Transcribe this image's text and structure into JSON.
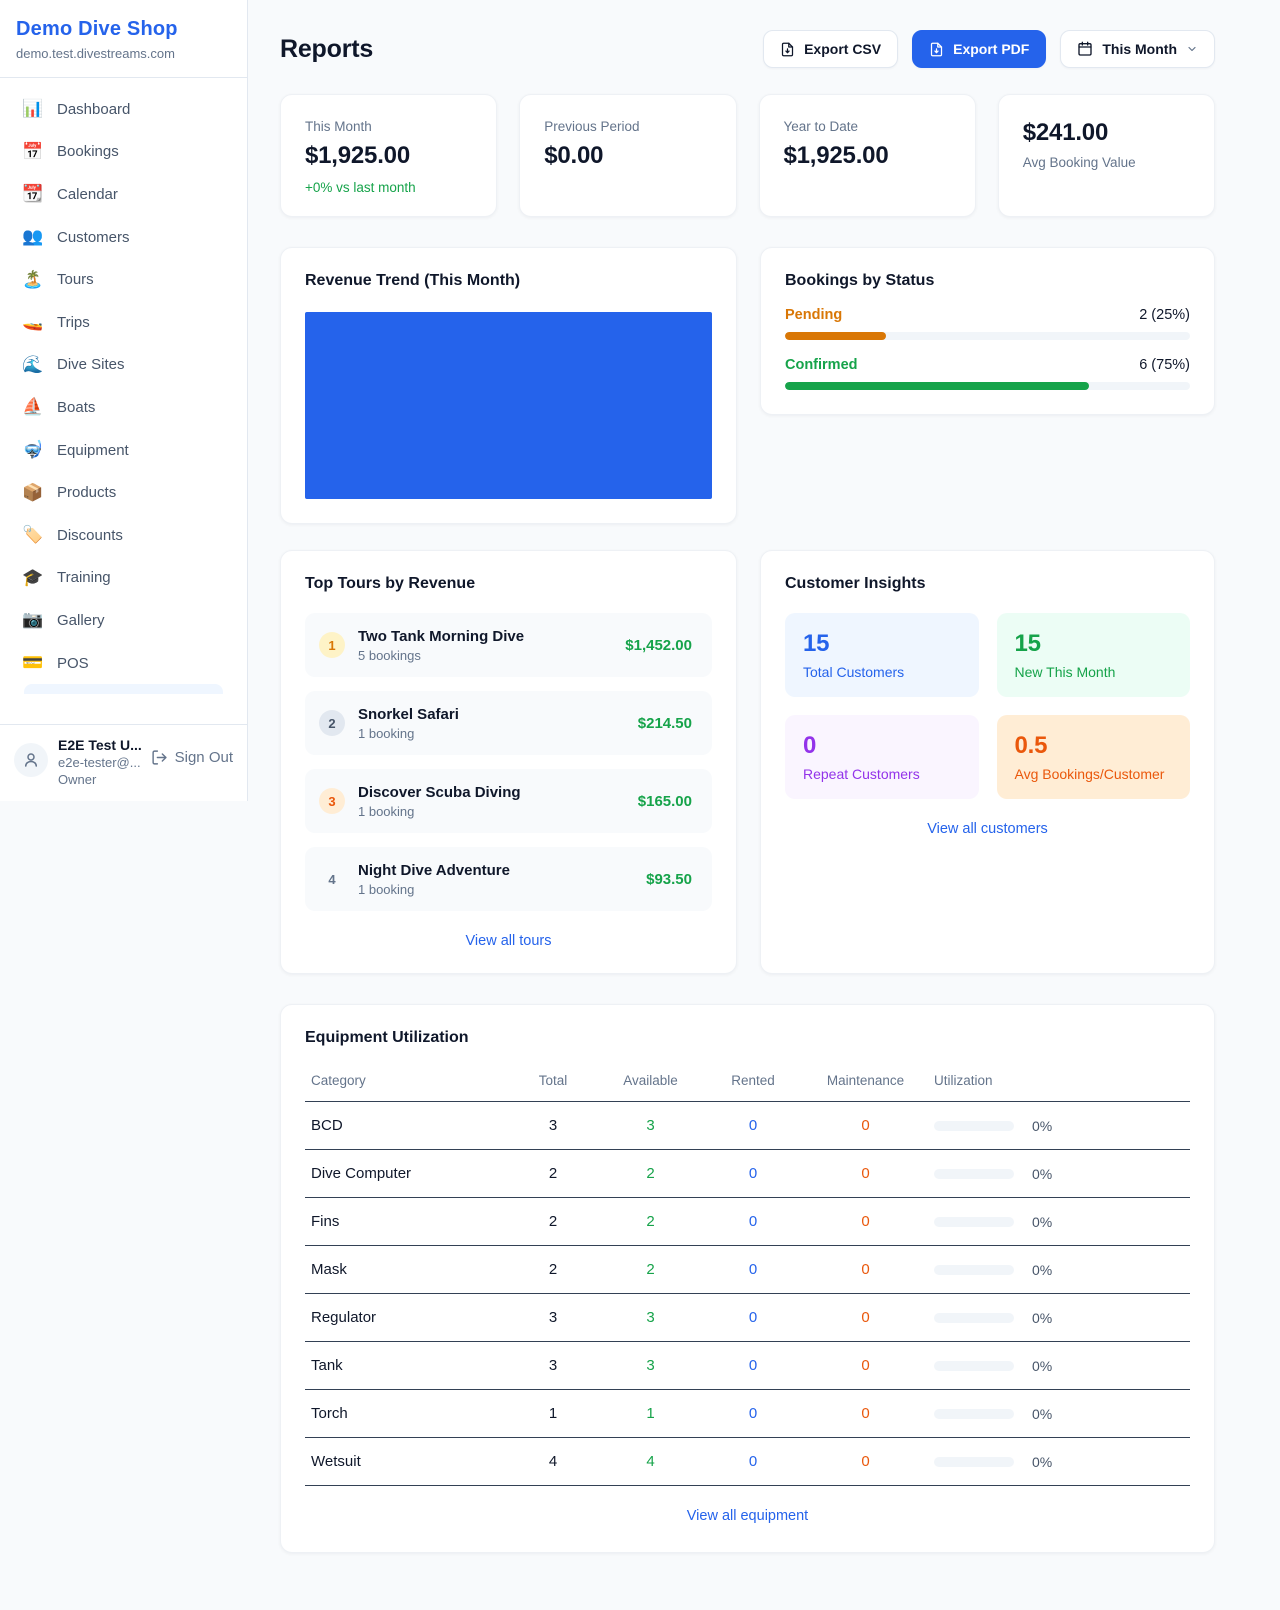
{
  "colors": {
    "primary_blue": "#2563eb",
    "green": "#16a34a",
    "amber": "#d97706",
    "orange": "#ea580c",
    "purple": "#9333ea"
  },
  "sidebar": {
    "shop_name": "Demo Dive Shop",
    "shop_domain": "demo.test.divestreams.com",
    "items": [
      {
        "icon": "📊",
        "icon_name": "bar-chart-icon",
        "label": "Dashboard"
      },
      {
        "icon": "📅",
        "icon_name": "calendar-date-icon",
        "label": "Bookings"
      },
      {
        "icon": "📆",
        "icon_name": "tear-off-calendar-icon",
        "label": "Calendar"
      },
      {
        "icon": "👥",
        "icon_name": "people-icon",
        "label": "Customers"
      },
      {
        "icon": "🏝️",
        "icon_name": "island-icon",
        "label": "Tours"
      },
      {
        "icon": "🚤",
        "icon_name": "speedboat-icon",
        "label": "Trips"
      },
      {
        "icon": "🌊",
        "icon_name": "wave-icon",
        "label": "Dive Sites"
      },
      {
        "icon": "⛵",
        "icon_name": "sailboat-icon",
        "label": "Boats"
      },
      {
        "icon": "🤿",
        "icon_name": "diving-mask-icon",
        "label": "Equipment"
      },
      {
        "icon": "📦",
        "icon_name": "package-icon",
        "label": "Products"
      },
      {
        "icon": "🏷️",
        "icon_name": "tag-icon",
        "label": "Discounts"
      },
      {
        "icon": "🎓",
        "icon_name": "graduation-cap-icon",
        "label": "Training"
      },
      {
        "icon": "📷",
        "icon_name": "camera-icon",
        "label": "Gallery"
      },
      {
        "icon": "💳",
        "icon_name": "credit-card-icon",
        "label": "POS"
      }
    ],
    "user": {
      "name": "E2E Test U...",
      "email": "e2e-tester@...",
      "role": "Owner",
      "sign_out_label": "Sign Out"
    }
  },
  "header": {
    "title": "Reports",
    "export_csv_label": "Export CSV",
    "export_pdf_label": "Export PDF",
    "period_label": "This Month"
  },
  "stats": [
    {
      "label": "This Month",
      "value": "$1,925.00",
      "sub": "+0% vs last month"
    },
    {
      "label": "Previous Period",
      "value": "$0.00"
    },
    {
      "label": "Year to Date",
      "value": "$1,925.00"
    },
    {
      "label": "Avg Booking Value",
      "value": "$241.00"
    }
  ],
  "revenue_trend": {
    "title": "Revenue Trend (This Month)"
  },
  "bookings_by_status": {
    "title": "Bookings by Status",
    "rows": [
      {
        "label": "Pending",
        "count_label": "2 (25%)",
        "pct": 25
      },
      {
        "label": "Confirmed",
        "count_label": "6 (75%)",
        "pct": 75
      }
    ]
  },
  "top_tours": {
    "title": "Top Tours by Revenue",
    "items": [
      {
        "rank": "1",
        "name": "Two Tank Morning Dive",
        "bookings": "5 bookings",
        "amount": "$1,452.00"
      },
      {
        "rank": "2",
        "name": "Snorkel Safari",
        "bookings": "1 booking",
        "amount": "$214.50"
      },
      {
        "rank": "3",
        "name": "Discover Scuba Diving",
        "bookings": "1 booking",
        "amount": "$165.00"
      },
      {
        "rank": "4",
        "name": "Night Dive Adventure",
        "bookings": "1 booking",
        "amount": "$93.50"
      }
    ],
    "view_all": "View all tours"
  },
  "customer_insights": {
    "title": "Customer Insights",
    "tiles": [
      {
        "value": "15",
        "label": "Total Customers"
      },
      {
        "value": "15",
        "label": "New This Month"
      },
      {
        "value": "0",
        "label": "Repeat Customers"
      },
      {
        "value": "0.5",
        "label": "Avg Bookings/Customer"
      }
    ],
    "view_all": "View all customers"
  },
  "equipment": {
    "title": "Equipment Utilization",
    "columns": [
      "Category",
      "Total",
      "Available",
      "Rented",
      "Maintenance",
      "Utilization"
    ],
    "rows": [
      {
        "category": "BCD",
        "total": "3",
        "available": "3",
        "rented": "0",
        "maintenance": "0",
        "utilization_label": "0%",
        "utilization_pct": 0
      },
      {
        "category": "Dive Computer",
        "total": "2",
        "available": "2",
        "rented": "0",
        "maintenance": "0",
        "utilization_label": "0%",
        "utilization_pct": 0
      },
      {
        "category": "Fins",
        "total": "2",
        "available": "2",
        "rented": "0",
        "maintenance": "0",
        "utilization_label": "0%",
        "utilization_pct": 0
      },
      {
        "category": "Mask",
        "total": "2",
        "available": "2",
        "rented": "0",
        "maintenance": "0",
        "utilization_label": "0%",
        "utilization_pct": 0
      },
      {
        "category": "Regulator",
        "total": "3",
        "available": "3",
        "rented": "0",
        "maintenance": "0",
        "utilization_label": "0%",
        "utilization_pct": 0
      },
      {
        "category": "Tank",
        "total": "3",
        "available": "3",
        "rented": "0",
        "maintenance": "0",
        "utilization_label": "0%",
        "utilization_pct": 0
      },
      {
        "category": "Torch",
        "total": "1",
        "available": "1",
        "rented": "0",
        "maintenance": "0",
        "utilization_label": "0%",
        "utilization_pct": 0
      },
      {
        "category": "Wetsuit",
        "total": "4",
        "available": "4",
        "rented": "0",
        "maintenance": "0",
        "utilization_label": "0%",
        "utilization_pct": 0
      }
    ],
    "view_all": "View all equipment"
  }
}
